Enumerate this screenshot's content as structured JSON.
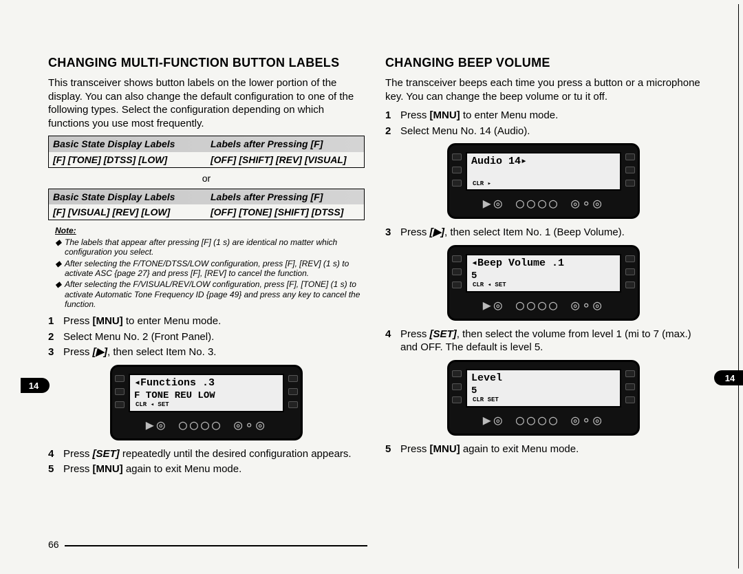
{
  "left": {
    "heading": "CHANGING MULTI-FUNCTION BUTTON LABELS",
    "intro": "This transceiver shows button labels on the lower portion of the display. You can also change the default configuration to one of the following types. Select the configuration depending on which functions you use most frequently.",
    "table1": {
      "h1": "Basic State Display Labels",
      "h2": "Labels after Pressing [F]",
      "r1": "[F] [TONE] [DTSS] [LOW]",
      "r2": "[OFF] [SHIFT] [REV] [VISUAL]"
    },
    "or": "or",
    "table2": {
      "h1": "Basic State Display Labels",
      "h2": "Labels after Pressing [F]",
      "r1": "[F] [VISUAL] [REV] [LOW]",
      "r2": "[OFF] [TONE] [SHIFT] [DTSS]"
    },
    "note_title": "Note:",
    "notes": [
      "The labels that appear after pressing [F] (1 s) are identical no matter which configuration you select.",
      "After selecting the F/TONE/DTSS/LOW configuration, press [F], [REV] (1 s) to activate ASC {page 27} and press [F], [REV] to cancel the function.",
      "After selecting the F/VISUAL/REV/LOW configuration, press [F], [TONE] (1 s) to activate Automatic Tone Frequency ID {page 49} and press any key to cancel the function."
    ],
    "steps": [
      {
        "n": "1",
        "t": "Press [MNU] to enter Menu mode."
      },
      {
        "n": "2",
        "t": "Select Menu No. 2 (Front Panel)."
      },
      {
        "n": "3",
        "t": "Press [▶], then select Item No. 3."
      },
      {
        "n": "4",
        "t": "Press [SET] repeatedly until the desired configuration appears."
      },
      {
        "n": "5",
        "t": "Press [MNU] again to exit Menu mode."
      }
    ],
    "lcd": {
      "line1": "◂Functions   .3",
      "line2": "F  TONE REU LOW",
      "bottom": "CLR  ◂   SET"
    },
    "page_num": "66",
    "tab": "14"
  },
  "right": {
    "heading": "CHANGING BEEP VOLUME",
    "intro": "The transceiver beeps each time you press a button or a microphone key. You can change the beep volume or tu it off.",
    "steps_a": [
      {
        "n": "1",
        "t": "Press [MNU] to enter Menu mode."
      },
      {
        "n": "2",
        "t": "Select Menu No. 14 (Audio)."
      }
    ],
    "lcd1": {
      "line1": "Audio        14▸",
      "line2": "",
      "bottom": "CLR   ▸"
    },
    "step3": {
      "n": "3",
      "t": "Press [▶], then select Item No. 1 (Beep Volume)."
    },
    "lcd2": {
      "line1": "◂Beep Volume  .1",
      "line2": "5",
      "bottom": "CLR  ◂   SET"
    },
    "step4": {
      "n": "4",
      "t": "Press [SET], then select the volume from level 1 (mi to 7 (max.) and OFF. The default is level 5."
    },
    "lcd3": {
      "line1": "Level",
      "line2": "5",
      "bottom": "CLR       SET"
    },
    "step5": {
      "n": "5",
      "t": "Press [MNU] again to exit Menu mode."
    },
    "tab": "14"
  },
  "colors": {
    "page_bg": "#f5f5f2",
    "text": "#000000"
  }
}
